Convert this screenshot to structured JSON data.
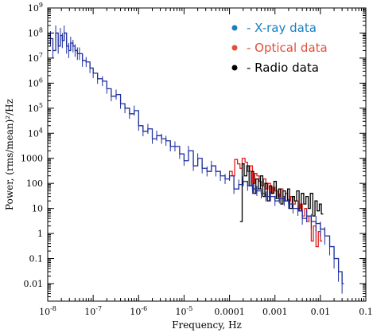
{
  "chart_data": {
    "type": "line",
    "xlabel": "Frequency, Hz",
    "ylabel": "Power, (rms/mean)²/Hz",
    "xscale": "log",
    "yscale": "log",
    "xlim": [
      1e-08,
      0.1
    ],
    "ylim": [
      0.002,
      1000000000.0
    ],
    "x_ticks": [
      {
        "value": 1e-08,
        "base": "10",
        "exp": "-8"
      },
      {
        "value": 1e-07,
        "base": "10",
        "exp": "-7"
      },
      {
        "value": 1e-06,
        "base": "10",
        "exp": "-6"
      },
      {
        "value": 1e-05,
        "base": "10",
        "exp": "-5"
      },
      {
        "value": 0.0001,
        "label": "0.0001"
      },
      {
        "value": 0.001,
        "label": "0.001"
      },
      {
        "value": 0.01,
        "label": "0.01"
      },
      {
        "value": 0.1,
        "label": "0.1"
      }
    ],
    "y_ticks": [
      {
        "value": 1000000000.0,
        "base": "10",
        "exp": "9"
      },
      {
        "value": 100000000.0,
        "base": "10",
        "exp": "8"
      },
      {
        "value": 10000000.0,
        "base": "10",
        "exp": "7"
      },
      {
        "value": 1000000.0,
        "base": "10",
        "exp": "6"
      },
      {
        "value": 100000.0,
        "base": "10",
        "exp": "5"
      },
      {
        "value": 10000.0,
        "base": "10",
        "exp": "4"
      },
      {
        "value": 1000,
        "label": "1000"
      },
      {
        "value": 100,
        "label": "100"
      },
      {
        "value": 10,
        "label": "10"
      },
      {
        "value": 1,
        "label": "1"
      },
      {
        "value": 0.1,
        "label": "0.1"
      },
      {
        "value": 0.01,
        "label": "0.01"
      }
    ],
    "grid": false,
    "legend_position": "top-right",
    "series": [
      {
        "name": "- X-ray data",
        "color": "#1f2fa0",
        "legend_color": "#1a7fbf",
        "x": [
          1e-08,
          1.15e-08,
          1.3e-08,
          1.5e-08,
          1.7e-08,
          1.9e-08,
          2.1e-08,
          2.3e-08,
          2.6e-08,
          2.9e-08,
          3.2e-08,
          3.6e-08,
          4e-08,
          4.5e-08,
          5e-08,
          5.8e-08,
          7e-08,
          8.5e-08,
          1e-07,
          1.25e-07,
          1.6e-07,
          2e-07,
          2.5e-07,
          3.2e-07,
          4e-07,
          5e-07,
          6.3e-07,
          8e-07,
          1e-06,
          1.25e-06,
          1.6e-06,
          2e-06,
          2.5e-06,
          3.2e-06,
          4e-06,
          5e-06,
          6.3e-06,
          8e-06,
          1e-05,
          1.25e-05,
          1.6e-05,
          2e-05,
          2.5e-05,
          3.2e-05,
          4e-05,
          5e-05,
          6.3e-05,
          8e-05,
          0.0001,
          0.000125,
          0.00016,
          0.0002,
          0.00025,
          0.00032,
          0.0004,
          0.0005,
          0.00063,
          0.0008,
          0.001,
          0.00125,
          0.0016,
          0.002,
          0.0025,
          0.0032,
          0.004,
          0.005,
          0.0063,
          0.008,
          0.01,
          0.0125,
          0.016,
          0.02,
          0.025,
          0.03
        ],
        "y": [
          40000000.0,
          60000000.0,
          20000000.0,
          100000000.0,
          30000000.0,
          80000000.0,
          50000000.0,
          100000000.0,
          30000000.0,
          20000000.0,
          40000000.0,
          30000000.0,
          20000000.0,
          15000000.0,
          15000000.0,
          8000000.0,
          7000000.0,
          4000000.0,
          2500000.0,
          1500000.0,
          1200000.0,
          600000.0,
          300000.0,
          350000.0,
          150000.0,
          100000.0,
          60000.0,
          80000.0,
          20000.0,
          12000.0,
          15000.0,
          6000.0,
          8000.0,
          6000.0,
          5000.0,
          3000.0,
          3000.0,
          1500.0,
          800,
          2000.0,
          500,
          1000.0,
          400,
          300,
          500,
          300,
          200,
          150,
          200,
          60,
          90,
          120,
          80,
          60,
          50,
          40,
          30,
          30,
          20,
          25,
          20,
          15,
          10,
          8,
          4,
          5,
          3,
          2.5,
          1.5,
          0.8,
          0.3,
          0.1,
          0.03,
          0.01
        ],
        "y_err": [
          0.3,
          0.3,
          0.3,
          0.3,
          0.3,
          0.3,
          0.3,
          0.3,
          0.3,
          0.3,
          0.25,
          0.25,
          0.25,
          0.25,
          0.25,
          0.25,
          0.2,
          0.2,
          0.2,
          0.2,
          0.2,
          0.2,
          0.2,
          0.2,
          0.2,
          0.2,
          0.2,
          0.2,
          0.2,
          0.2,
          0.2,
          0.2,
          0.2,
          0.2,
          0.2,
          0.2,
          0.2,
          0.2,
          0.2,
          0.2,
          0.2,
          0.2,
          0.2,
          0.2,
          0.2,
          0.2,
          0.2,
          0.2,
          0.2,
          0.2,
          0.2,
          0.2,
          0.2,
          0.2,
          0.2,
          0.2,
          0.2,
          0.2,
          0.2,
          0.2,
          0.2,
          0.2,
          0.2,
          0.2,
          0.25,
          0.25,
          0.3,
          0.3,
          0.3,
          0.35,
          0.35,
          0.4,
          0.4,
          0.4
        ]
      },
      {
        "name": "- Optical data",
        "color": "#e02020",
        "legend_color": "#e0503a",
        "x": [
          0.0001,
          0.000115,
          0.00013,
          0.00015,
          0.00017,
          0.00019,
          0.00022,
          0.00025,
          0.00028,
          0.00032,
          0.00036,
          0.0004,
          0.00045,
          0.0005,
          0.00056,
          0.00063,
          0.0007,
          0.0008,
          0.0009,
          0.001,
          0.00115,
          0.0013,
          0.0015,
          0.0017,
          0.0019,
          0.0022,
          0.0025,
          0.0028,
          0.0032,
          0.0036,
          0.004,
          0.0045,
          0.005,
          0.0056,
          0.0063,
          0.007,
          0.008,
          0.009,
          0.01
        ],
        "y": [
          300,
          200,
          900,
          600,
          400,
          1000,
          700,
          300,
          500,
          100,
          250,
          200,
          120,
          80,
          150,
          60,
          100,
          40,
          70,
          50,
          30,
          60,
          30,
          40,
          20,
          30,
          15,
          20,
          10,
          15,
          5,
          10,
          3,
          5,
          0.5,
          2,
          0.3,
          1.2,
          0.5
        ]
      },
      {
        "name": "- Radio data",
        "color": "#000000",
        "legend_color": "#000000",
        "x": [
          0.00017,
          0.00019,
          0.00021,
          0.00024,
          0.00027,
          0.0003,
          0.00034,
          0.00038,
          0.00043,
          0.00048,
          0.00054,
          0.0006,
          0.00068,
          0.00076,
          0.00085,
          0.00095,
          0.00107,
          0.0012,
          0.00135,
          0.0015,
          0.0017,
          0.0019,
          0.0021,
          0.0024,
          0.0027,
          0.003,
          0.0034,
          0.0038,
          0.0043,
          0.0048,
          0.0054,
          0.006,
          0.0068,
          0.0076,
          0.0085,
          0.0095,
          0.0105
        ],
        "y": [
          3,
          600,
          200,
          500,
          80,
          300,
          40,
          150,
          60,
          200,
          30,
          100,
          20,
          80,
          40,
          120,
          25,
          60,
          15,
          50,
          20,
          60,
          10,
          30,
          20,
          50,
          8,
          40,
          15,
          30,
          10,
          40,
          5,
          20,
          8,
          15,
          6
        ]
      }
    ]
  }
}
